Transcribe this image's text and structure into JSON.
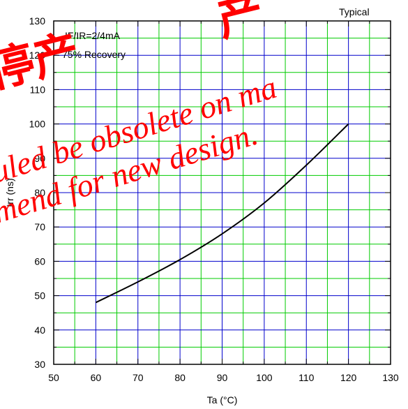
{
  "chart_data": {
    "type": "line",
    "title": "",
    "xlabel": "Ta (°C)",
    "ylabel": "trr (ns)",
    "xlim": [
      50,
      130
    ],
    "ylim": [
      30,
      130
    ],
    "x_ticks": [
      50,
      60,
      70,
      80,
      90,
      100,
      110,
      120,
      130
    ],
    "y_ticks": [
      30,
      40,
      50,
      60,
      70,
      80,
      90,
      100,
      110,
      120,
      130
    ],
    "x_minor_step": 5,
    "y_minor_step": 5,
    "grid": true,
    "grid_major_color": "#0000cc",
    "grid_minor_color": "#00cc00",
    "series": [
      {
        "color": "#000000",
        "x": [
          60,
          70,
          80,
          90,
          100,
          110,
          120
        ],
        "y": [
          48,
          54,
          60.5,
          68,
          77,
          88,
          100
        ]
      }
    ],
    "annotations": {
      "condition_1": "IF/IR=2/4mA",
      "condition_2": "75% Recovery",
      "corner_label": "Typical"
    }
  },
  "watermark": {
    "cjk_text": "停产",
    "line_1": "uled be obsolete on ma",
    "line_2": "mend for new design.",
    "color": "#ff0000"
  }
}
